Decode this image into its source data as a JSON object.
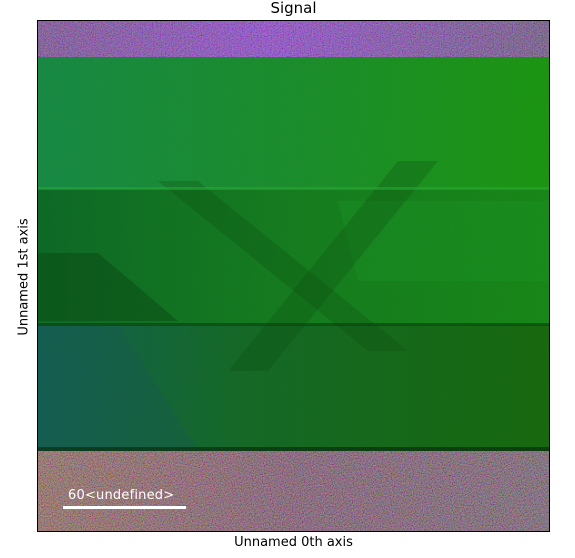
{
  "chart_data": {
    "type": "heatmap",
    "title": "Signal",
    "xlabel": "Unnamed 0th axis",
    "ylabel": "Unnamed 1st axis",
    "colormap": "rgb",
    "scalebar": {
      "value": "60",
      "units": "<undefined>",
      "color": "#ffffff"
    },
    "regions": [
      {
        "name": "top-noise-band",
        "description": "noisy multicolored strip with purple/blue tones",
        "dominant_color": "#3a1a5a"
      },
      {
        "name": "upper-green-layer",
        "dominant_color": "#1f8a2c"
      },
      {
        "name": "middle-green-layer",
        "dominant_color": "#17701f"
      },
      {
        "name": "lower-green-layer",
        "dominant_color": "#17641c"
      },
      {
        "name": "bottom-noise-band",
        "description": "noisy multicolored strip with red/green/blue speckles",
        "dominant_color": "#4a2a3a"
      }
    ],
    "axes_visible": false,
    "grid": false
  }
}
